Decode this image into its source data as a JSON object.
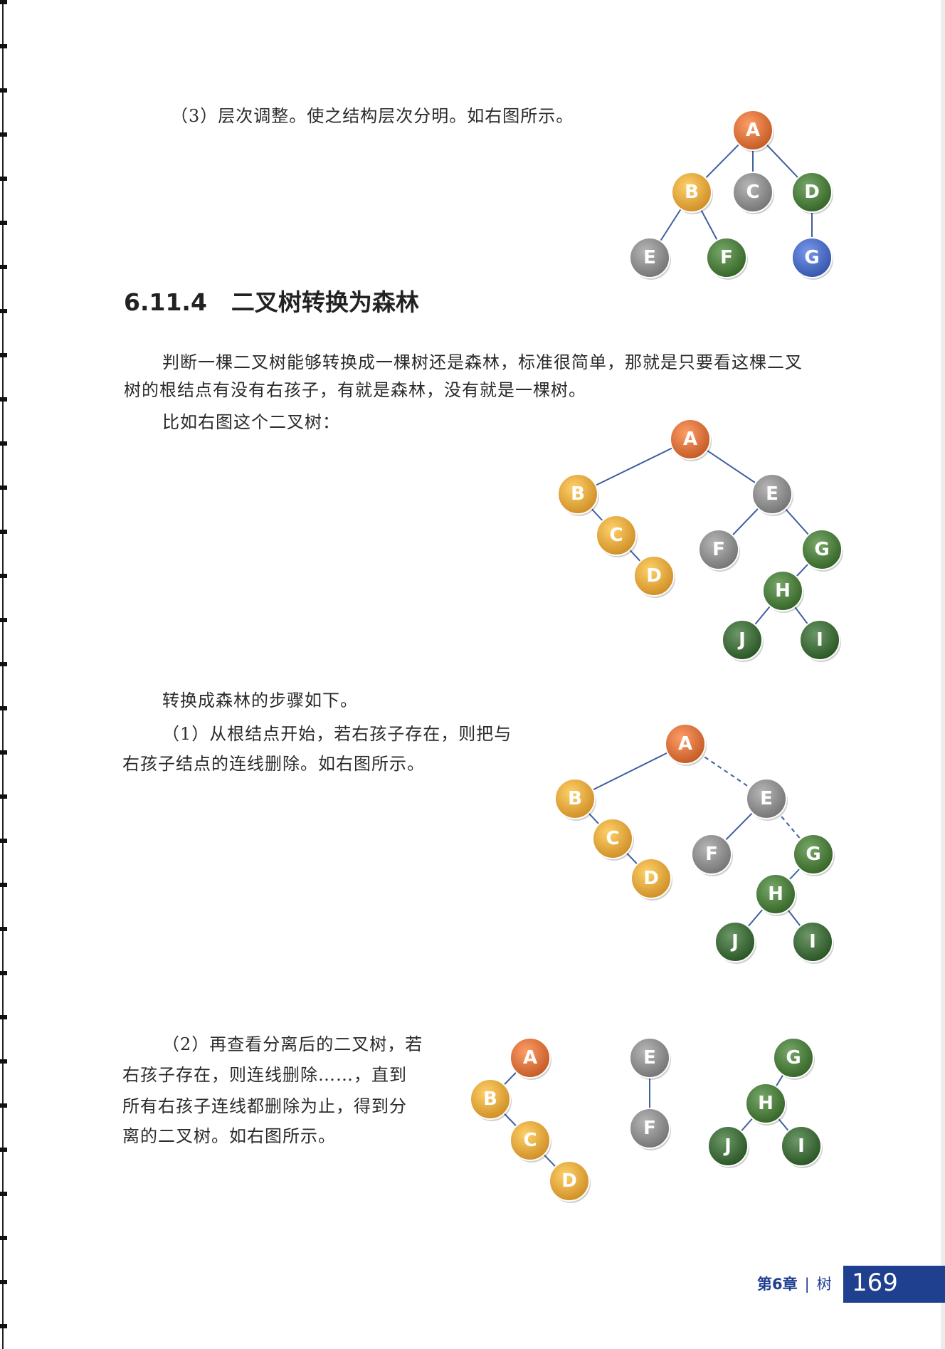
{
  "colors": {
    "orange_root": "#d9703a",
    "yellow_orange": "#e6a43c",
    "gray": "#8a8a8a",
    "green": "#4a7a3c",
    "dark_green": "#3f6a3a",
    "blue": "#4a6bbf",
    "edge": "#3f5f9f"
  },
  "step3": {
    "text": "（3）层次调整。使之结构层次分明。如右图所示。"
  },
  "section": {
    "number": "6.11.4",
    "title": "二叉树转换为森林"
  },
  "intro": {
    "line1": "判断一棵二叉树能够转换成一棵树还是森林，标准很简单，那就是只要看这棵二叉",
    "line2": "树的根结点有没有右孩子，有就是森林，没有就是一棵树。",
    "line3": "比如右图这个二叉树："
  },
  "steps_intro": "转换成森林的步骤如下。",
  "step1": {
    "line1": "（1）从根结点开始，若右孩子存在，则把与",
    "line2": "右孩子结点的连线删除。如右图所示。"
  },
  "step2": {
    "line1": "（2）再查看分离后的二叉树，若",
    "line2": "右孩子存在，则连线删除……，直到",
    "line3": "所有右孩子连线都删除为止，得到分",
    "line4": "离的二叉树。如右图所示。"
  },
  "trees": {
    "tree1": {
      "nodes": [
        {
          "id": "A",
          "color": "orange_root"
        },
        {
          "id": "B",
          "color": "yellow_orange"
        },
        {
          "id": "C",
          "color": "gray"
        },
        {
          "id": "D",
          "color": "green"
        },
        {
          "id": "E",
          "color": "gray"
        },
        {
          "id": "F",
          "color": "green"
        },
        {
          "id": "G",
          "color": "blue"
        }
      ],
      "edges": [
        [
          "A",
          "B"
        ],
        [
          "A",
          "C"
        ],
        [
          "A",
          "D"
        ],
        [
          "B",
          "E"
        ],
        [
          "B",
          "F"
        ],
        [
          "D",
          "G"
        ]
      ]
    },
    "tree2": {
      "nodes": [
        {
          "id": "A",
          "color": "orange_root"
        },
        {
          "id": "B",
          "color": "yellow_orange"
        },
        {
          "id": "C",
          "color": "yellow_orange"
        },
        {
          "id": "D",
          "color": "yellow_orange"
        },
        {
          "id": "E",
          "color": "gray"
        },
        {
          "id": "F",
          "color": "gray"
        },
        {
          "id": "G",
          "color": "green"
        },
        {
          "id": "H",
          "color": "green"
        },
        {
          "id": "J",
          "color": "dark_green"
        },
        {
          "id": "I",
          "color": "dark_green"
        }
      ],
      "edges": [
        [
          "A",
          "B"
        ],
        [
          "A",
          "E"
        ],
        [
          "B",
          "C"
        ],
        [
          "C",
          "D"
        ],
        [
          "E",
          "F"
        ],
        [
          "E",
          "G"
        ],
        [
          "G",
          "H"
        ],
        [
          "H",
          "J"
        ],
        [
          "H",
          "I"
        ]
      ]
    },
    "tree3": {
      "nodes": [
        {
          "id": "A",
          "color": "orange_root"
        },
        {
          "id": "B",
          "color": "yellow_orange"
        },
        {
          "id": "C",
          "color": "yellow_orange"
        },
        {
          "id": "D",
          "color": "yellow_orange"
        },
        {
          "id": "E",
          "color": "gray"
        },
        {
          "id": "F",
          "color": "gray"
        },
        {
          "id": "G",
          "color": "green"
        },
        {
          "id": "H",
          "color": "green"
        },
        {
          "id": "J",
          "color": "dark_green"
        },
        {
          "id": "I",
          "color": "dark_green"
        }
      ],
      "edges": [
        [
          "A",
          "B"
        ],
        [
          "B",
          "C"
        ],
        [
          "C",
          "D"
        ],
        [
          "E",
          "F"
        ],
        [
          "G",
          "H"
        ],
        [
          "H",
          "J"
        ],
        [
          "H",
          "I"
        ]
      ],
      "dashed_edges": [
        [
          "A",
          "E"
        ],
        [
          "E",
          "G"
        ]
      ]
    },
    "tree4": {
      "nodes": [
        {
          "id": "A",
          "color": "orange_root"
        },
        {
          "id": "B",
          "color": "yellow_orange"
        },
        {
          "id": "C",
          "color": "yellow_orange"
        },
        {
          "id": "D",
          "color": "yellow_orange"
        },
        {
          "id": "E",
          "color": "gray"
        },
        {
          "id": "F",
          "color": "gray"
        },
        {
          "id": "G",
          "color": "green"
        },
        {
          "id": "H",
          "color": "green"
        },
        {
          "id": "J",
          "color": "dark_green"
        },
        {
          "id": "I",
          "color": "dark_green"
        }
      ],
      "edges": [
        [
          "A",
          "B"
        ],
        [
          "B",
          "C"
        ],
        [
          "C",
          "D"
        ],
        [
          "E",
          "F"
        ],
        [
          "G",
          "H"
        ],
        [
          "H",
          "J"
        ],
        [
          "H",
          "I"
        ]
      ]
    }
  },
  "footer": {
    "chapter": "第6章",
    "separator": "|",
    "chapter_name": "树",
    "page_number": "169"
  }
}
